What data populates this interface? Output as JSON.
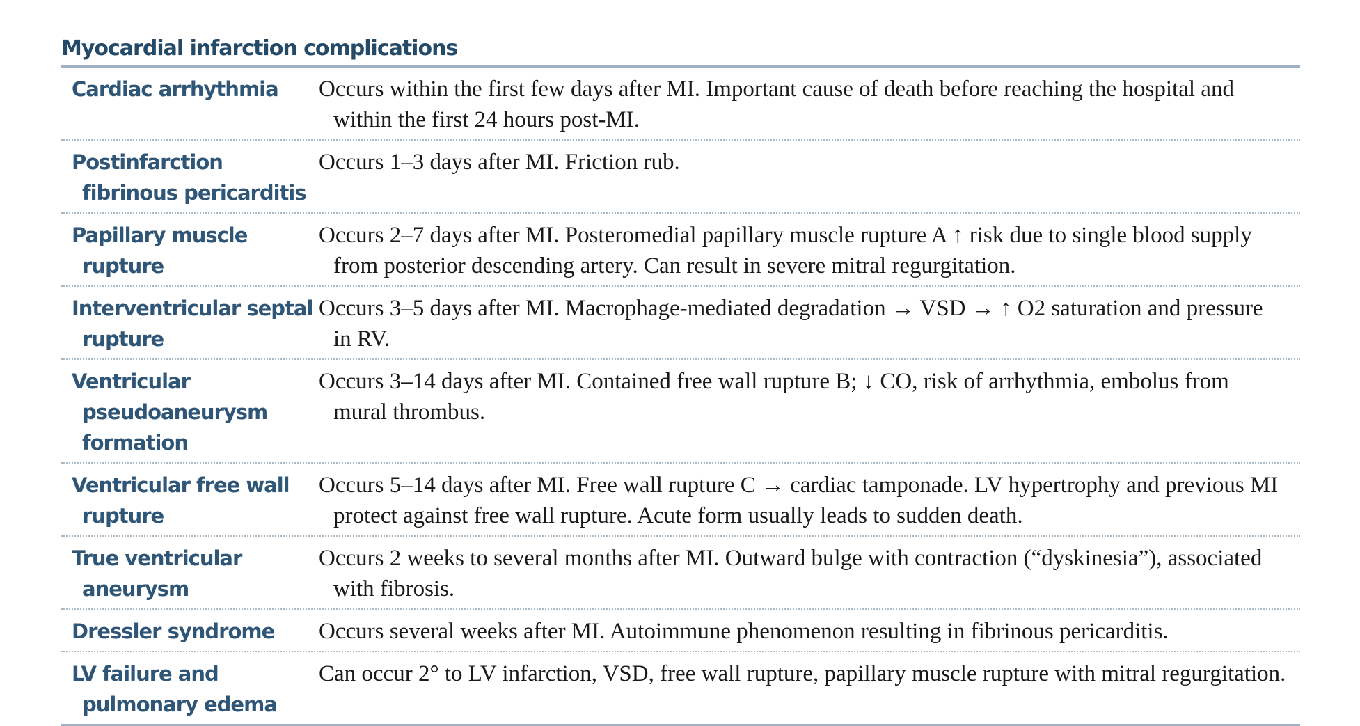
{
  "title": "Myocardial infarction complications",
  "rows": [
    {
      "term": "Cardiac arrhythmia",
      "desc": "Occurs within the first few days after MI. Important cause of death before reaching the hospital and within the first 24 hours post-MI."
    },
    {
      "term": "Postinfarction fibrinous pericarditis",
      "desc": "Occurs 1–3 days after MI. Friction rub."
    },
    {
      "term": "Papillary muscle rupture",
      "desc": "Occurs 2–7 days after MI. Posteromedial papillary muscle rupture A ↑ risk due to single blood supply from posterior descending artery. Can result in severe mitral regurgitation."
    },
    {
      "term": "Interventricular septal rupture",
      "desc": "Occurs 3–5 days after MI. Macrophage-mediated degradation → VSD → ↑ O2 saturation and pressure in RV."
    },
    {
      "term": "Ventricular pseudoaneurysm formation",
      "desc": "Occurs 3–14 days after MI. Contained free wall rupture B; ↓ CO, risk of arrhythmia, embolus from mural thrombus."
    },
    {
      "term": "Ventricular free wall rupture",
      "desc": "Occurs 5–14 days after MI. Free wall rupture C → cardiac tamponade. LV hypertrophy and previous MI protect against free wall rupture. Acute form usually leads to sudden death."
    },
    {
      "term": "True ventricular aneurysm",
      "desc": "Occurs 2 weeks to several months after MI. Outward bulge with contraction (“dyskinesia”), associated with fibrosis."
    },
    {
      "term": "Dressler syndrome",
      "desc": "Occurs several weeks after MI. Autoimmune phenomenon resulting in fibrinous pericarditis."
    },
    {
      "term": "LV failure and pulmonary edema",
      "desc": "Can occur 2° to LV infarction, VSD, free wall rupture, papillary muscle rupture with mitral regurgitation."
    }
  ]
}
